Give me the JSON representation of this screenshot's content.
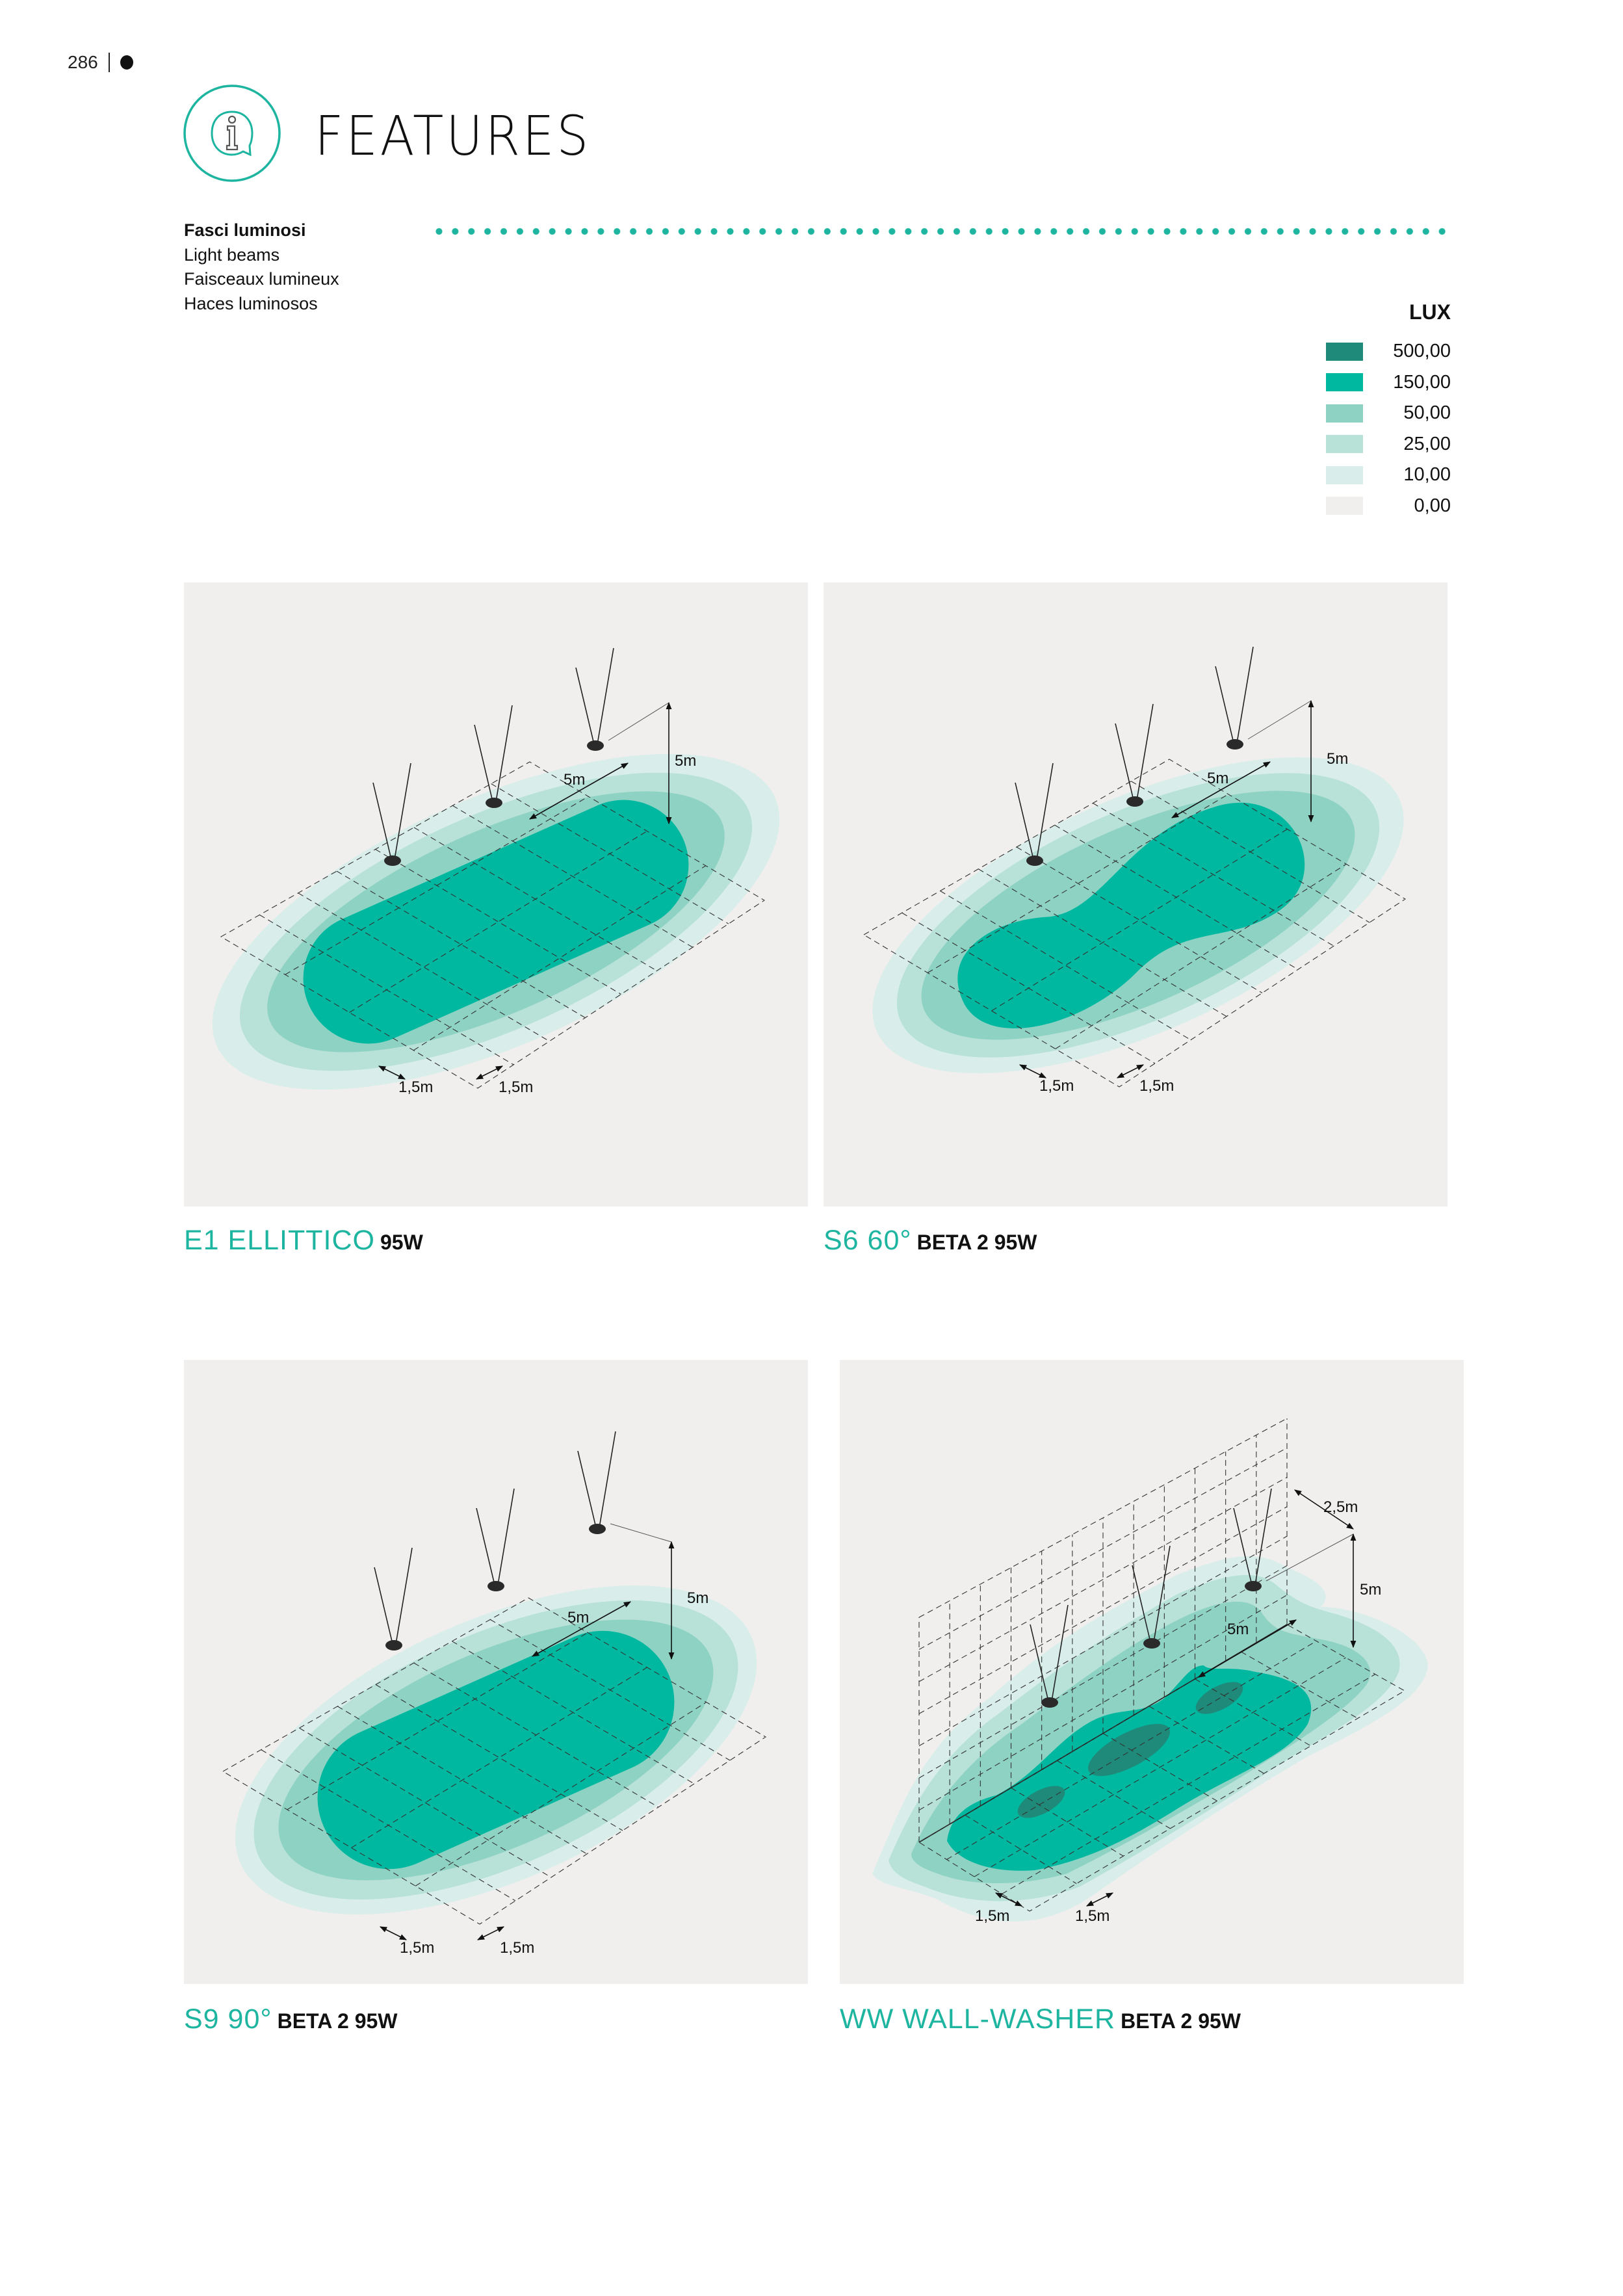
{
  "page_number": "286",
  "header": {
    "title": "FEATURES",
    "icon": "info-speech-bubble-icon"
  },
  "section": {
    "labels": [
      "Fasci luminosi",
      "Light beams",
      "Faisceaux lumineux",
      "Haces luminosos"
    ]
  },
  "legend": {
    "title": "LUX",
    "items": [
      {
        "value": "500,00",
        "color": "#1f8a7a"
      },
      {
        "value": "150,00",
        "color": "#00b8a0"
      },
      {
        "value": "50,00",
        "color": "#8ed2c3"
      },
      {
        "value": "25,00",
        "color": "#b8e1d8"
      },
      {
        "value": "10,00",
        "color": "#d9eeea"
      },
      {
        "value": "0,00",
        "color": "#f0efed"
      }
    ]
  },
  "accent_color": "#1db5a0",
  "panels": [
    {
      "model": "E1 ELLITTICO",
      "spec": "95W",
      "dims": {
        "height": "5m",
        "spacing": "5m",
        "offset_a": "1,5m",
        "offset_b": "1,5m"
      }
    },
    {
      "model": "S6 60°",
      "spec": "BETA 2 95W",
      "dims": {
        "height": "5m",
        "spacing": "5m",
        "offset_a": "1,5m",
        "offset_b": "1,5m"
      }
    },
    {
      "model": "S9 90°",
      "spec": "BETA 2 95W",
      "dims": {
        "height": "5m",
        "spacing": "5m",
        "offset_a": "1,5m",
        "offset_b": "1,5m"
      }
    },
    {
      "model": "WW WALL-WASHER",
      "spec": "BETA 2 95W",
      "dims": {
        "height": "5m",
        "spacing": "5m",
        "offset_a": "1,5m",
        "offset_b": "1,5m",
        "wall_distance": "2,5m"
      }
    }
  ]
}
